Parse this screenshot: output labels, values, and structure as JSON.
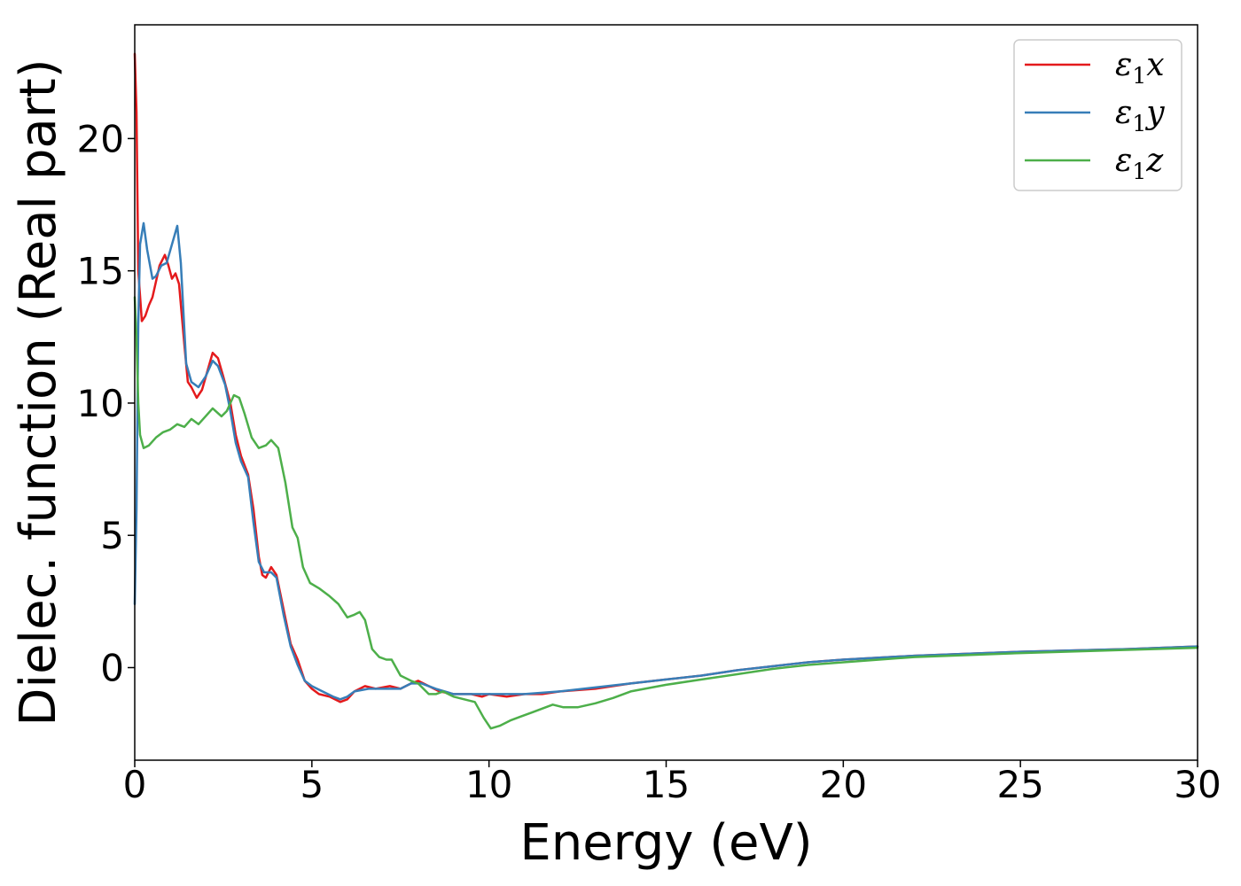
{
  "chart_data": {
    "type": "line",
    "title": "",
    "xlabel": "Energy (eV)",
    "ylabel": "Dielec. function (Real part)",
    "xlim": [
      0,
      30
    ],
    "ylim": [
      -3.5,
      24.3
    ],
    "xticks": [
      0,
      5,
      10,
      15,
      20,
      25,
      30
    ],
    "yticks": [
      0,
      5,
      10,
      15,
      20
    ],
    "grid": false,
    "legend_position": "top-right",
    "series": [
      {
        "name": "ε1x",
        "legend_base": "ε",
        "legend_sub": "1",
        "legend_tail": "x",
        "color": "#e41a1c",
        "points": [
          [
            0,
            23.2
          ],
          [
            0.05,
            21
          ],
          [
            0.1,
            15
          ],
          [
            0.2,
            13.1
          ],
          [
            0.3,
            13.3
          ],
          [
            0.4,
            13.7
          ],
          [
            0.5,
            14.0
          ],
          [
            0.6,
            14.6
          ],
          [
            0.7,
            15.2
          ],
          [
            0.85,
            15.6
          ],
          [
            0.95,
            15.2
          ],
          [
            1.05,
            14.7
          ],
          [
            1.15,
            14.9
          ],
          [
            1.25,
            14.5
          ],
          [
            1.4,
            12.2
          ],
          [
            1.5,
            10.8
          ],
          [
            1.6,
            10.6
          ],
          [
            1.75,
            10.2
          ],
          [
            1.9,
            10.5
          ],
          [
            2.05,
            11.2
          ],
          [
            2.2,
            11.9
          ],
          [
            2.35,
            11.7
          ],
          [
            2.5,
            11.0
          ],
          [
            2.7,
            10.0
          ],
          [
            2.85,
            8.8
          ],
          [
            3.0,
            8.0
          ],
          [
            3.2,
            7.3
          ],
          [
            3.35,
            6.0
          ],
          [
            3.5,
            4.2
          ],
          [
            3.6,
            3.5
          ],
          [
            3.7,
            3.4
          ],
          [
            3.85,
            3.8
          ],
          [
            4.0,
            3.5
          ],
          [
            4.2,
            2.2
          ],
          [
            4.4,
            0.9
          ],
          [
            4.6,
            0.3
          ],
          [
            4.8,
            -0.5
          ],
          [
            5.0,
            -0.8
          ],
          [
            5.2,
            -1.0
          ],
          [
            5.5,
            -1.1
          ],
          [
            5.8,
            -1.3
          ],
          [
            6.0,
            -1.2
          ],
          [
            6.2,
            -0.9
          ],
          [
            6.5,
            -0.7
          ],
          [
            6.8,
            -0.8
          ],
          [
            7.2,
            -0.7
          ],
          [
            7.5,
            -0.8
          ],
          [
            7.8,
            -0.6
          ],
          [
            8.0,
            -0.5
          ],
          [
            8.3,
            -0.7
          ],
          [
            8.6,
            -0.9
          ],
          [
            9.0,
            -1.0
          ],
          [
            9.5,
            -1.0
          ],
          [
            9.8,
            -1.1
          ],
          [
            10.0,
            -1.0
          ],
          [
            10.5,
            -1.1
          ],
          [
            11.0,
            -1.0
          ],
          [
            11.5,
            -1.0
          ],
          [
            12.0,
            -0.9
          ],
          [
            13.0,
            -0.8
          ],
          [
            14.0,
            -0.6
          ],
          [
            15.0,
            -0.45
          ],
          [
            16.0,
            -0.3
          ],
          [
            17.0,
            -0.1
          ],
          [
            18.0,
            0.05
          ],
          [
            19.0,
            0.2
          ],
          [
            20.0,
            0.3
          ],
          [
            22.0,
            0.45
          ],
          [
            25.0,
            0.6
          ],
          [
            28.0,
            0.7
          ],
          [
            30.0,
            0.8
          ]
        ]
      },
      {
        "name": "ε1y",
        "legend_base": "ε",
        "legend_sub": "1",
        "legend_tail": "y",
        "color": "#377eb8",
        "points": [
          [
            0,
            2.4
          ],
          [
            0.05,
            6
          ],
          [
            0.1,
            13.0
          ],
          [
            0.15,
            16.0
          ],
          [
            0.25,
            16.8
          ],
          [
            0.35,
            15.8
          ],
          [
            0.5,
            14.7
          ],
          [
            0.6,
            14.8
          ],
          [
            0.75,
            15.2
          ],
          [
            0.9,
            15.3
          ],
          [
            1.05,
            16.0
          ],
          [
            1.2,
            16.7
          ],
          [
            1.3,
            15.3
          ],
          [
            1.45,
            11.5
          ],
          [
            1.6,
            10.8
          ],
          [
            1.8,
            10.6
          ],
          [
            2.0,
            11.0
          ],
          [
            2.2,
            11.6
          ],
          [
            2.35,
            11.4
          ],
          [
            2.55,
            10.7
          ],
          [
            2.7,
            9.7
          ],
          [
            2.85,
            8.5
          ],
          [
            3.0,
            7.8
          ],
          [
            3.2,
            7.2
          ],
          [
            3.35,
            5.5
          ],
          [
            3.5,
            4.0
          ],
          [
            3.65,
            3.6
          ],
          [
            3.85,
            3.6
          ],
          [
            4.0,
            3.4
          ],
          [
            4.2,
            2.0
          ],
          [
            4.4,
            0.8
          ],
          [
            4.6,
            0.1
          ],
          [
            4.8,
            -0.5
          ],
          [
            5.0,
            -0.7
          ],
          [
            5.3,
            -0.9
          ],
          [
            5.6,
            -1.1
          ],
          [
            5.8,
            -1.2
          ],
          [
            6.0,
            -1.1
          ],
          [
            6.2,
            -0.9
          ],
          [
            6.6,
            -0.8
          ],
          [
            7.0,
            -0.8
          ],
          [
            7.5,
            -0.8
          ],
          [
            7.8,
            -0.6
          ],
          [
            8.1,
            -0.6
          ],
          [
            8.5,
            -0.8
          ],
          [
            9.0,
            -1.0
          ],
          [
            9.5,
            -1.0
          ],
          [
            10.0,
            -1.0
          ],
          [
            10.5,
            -1.0
          ],
          [
            11.0,
            -1.0
          ],
          [
            12.0,
            -0.9
          ],
          [
            13.0,
            -0.75
          ],
          [
            14.0,
            -0.6
          ],
          [
            15.0,
            -0.45
          ],
          [
            16.0,
            -0.3
          ],
          [
            17.0,
            -0.1
          ],
          [
            18.0,
            0.05
          ],
          [
            19.0,
            0.2
          ],
          [
            20.0,
            0.3
          ],
          [
            22.0,
            0.45
          ],
          [
            25.0,
            0.6
          ],
          [
            28.0,
            0.7
          ],
          [
            30.0,
            0.8
          ]
        ]
      },
      {
        "name": "ε1z",
        "legend_base": "ε",
        "legend_sub": "1",
        "legend_tail": "z",
        "color": "#4daf4a",
        "points": [
          [
            0,
            14.0
          ],
          [
            0.05,
            12.5
          ],
          [
            0.1,
            10.0
          ],
          [
            0.15,
            8.8
          ],
          [
            0.25,
            8.3
          ],
          [
            0.4,
            8.4
          ],
          [
            0.6,
            8.7
          ],
          [
            0.8,
            8.9
          ],
          [
            1.0,
            9.0
          ],
          [
            1.2,
            9.2
          ],
          [
            1.4,
            9.1
          ],
          [
            1.6,
            9.4
          ],
          [
            1.8,
            9.2
          ],
          [
            2.0,
            9.5
          ],
          [
            2.2,
            9.8
          ],
          [
            2.45,
            9.5
          ],
          [
            2.6,
            9.7
          ],
          [
            2.8,
            10.3
          ],
          [
            2.95,
            10.2
          ],
          [
            3.1,
            9.6
          ],
          [
            3.3,
            8.7
          ],
          [
            3.5,
            8.3
          ],
          [
            3.7,
            8.4
          ],
          [
            3.85,
            8.6
          ],
          [
            4.05,
            8.3
          ],
          [
            4.25,
            7.0
          ],
          [
            4.45,
            5.3
          ],
          [
            4.6,
            4.9
          ],
          [
            4.75,
            3.8
          ],
          [
            4.95,
            3.2
          ],
          [
            5.2,
            3.0
          ],
          [
            5.5,
            2.7
          ],
          [
            5.75,
            2.4
          ],
          [
            6.0,
            1.9
          ],
          [
            6.2,
            2.0
          ],
          [
            6.35,
            2.1
          ],
          [
            6.5,
            1.8
          ],
          [
            6.7,
            0.7
          ],
          [
            6.9,
            0.4
          ],
          [
            7.1,
            0.3
          ],
          [
            7.25,
            0.3
          ],
          [
            7.5,
            -0.3
          ],
          [
            7.8,
            -0.5
          ],
          [
            8.0,
            -0.6
          ],
          [
            8.3,
            -1.0
          ],
          [
            8.5,
            -1.0
          ],
          [
            8.7,
            -0.9
          ],
          [
            9.0,
            -1.1
          ],
          [
            9.3,
            -1.2
          ],
          [
            9.6,
            -1.3
          ],
          [
            9.85,
            -1.9
          ],
          [
            10.05,
            -2.3
          ],
          [
            10.3,
            -2.2
          ],
          [
            10.6,
            -2.0
          ],
          [
            10.9,
            -1.85
          ],
          [
            11.2,
            -1.7
          ],
          [
            11.5,
            -1.55
          ],
          [
            11.8,
            -1.4
          ],
          [
            12.1,
            -1.5
          ],
          [
            12.5,
            -1.5
          ],
          [
            13.0,
            -1.35
          ],
          [
            13.5,
            -1.15
          ],
          [
            14.0,
            -0.9
          ],
          [
            15.0,
            -0.65
          ],
          [
            16.0,
            -0.45
          ],
          [
            17.0,
            -0.25
          ],
          [
            18.0,
            -0.05
          ],
          [
            19.0,
            0.1
          ],
          [
            20.0,
            0.2
          ],
          [
            22.0,
            0.4
          ],
          [
            25.0,
            0.55
          ],
          [
            28.0,
            0.67
          ],
          [
            30.0,
            0.75
          ]
        ]
      }
    ]
  }
}
